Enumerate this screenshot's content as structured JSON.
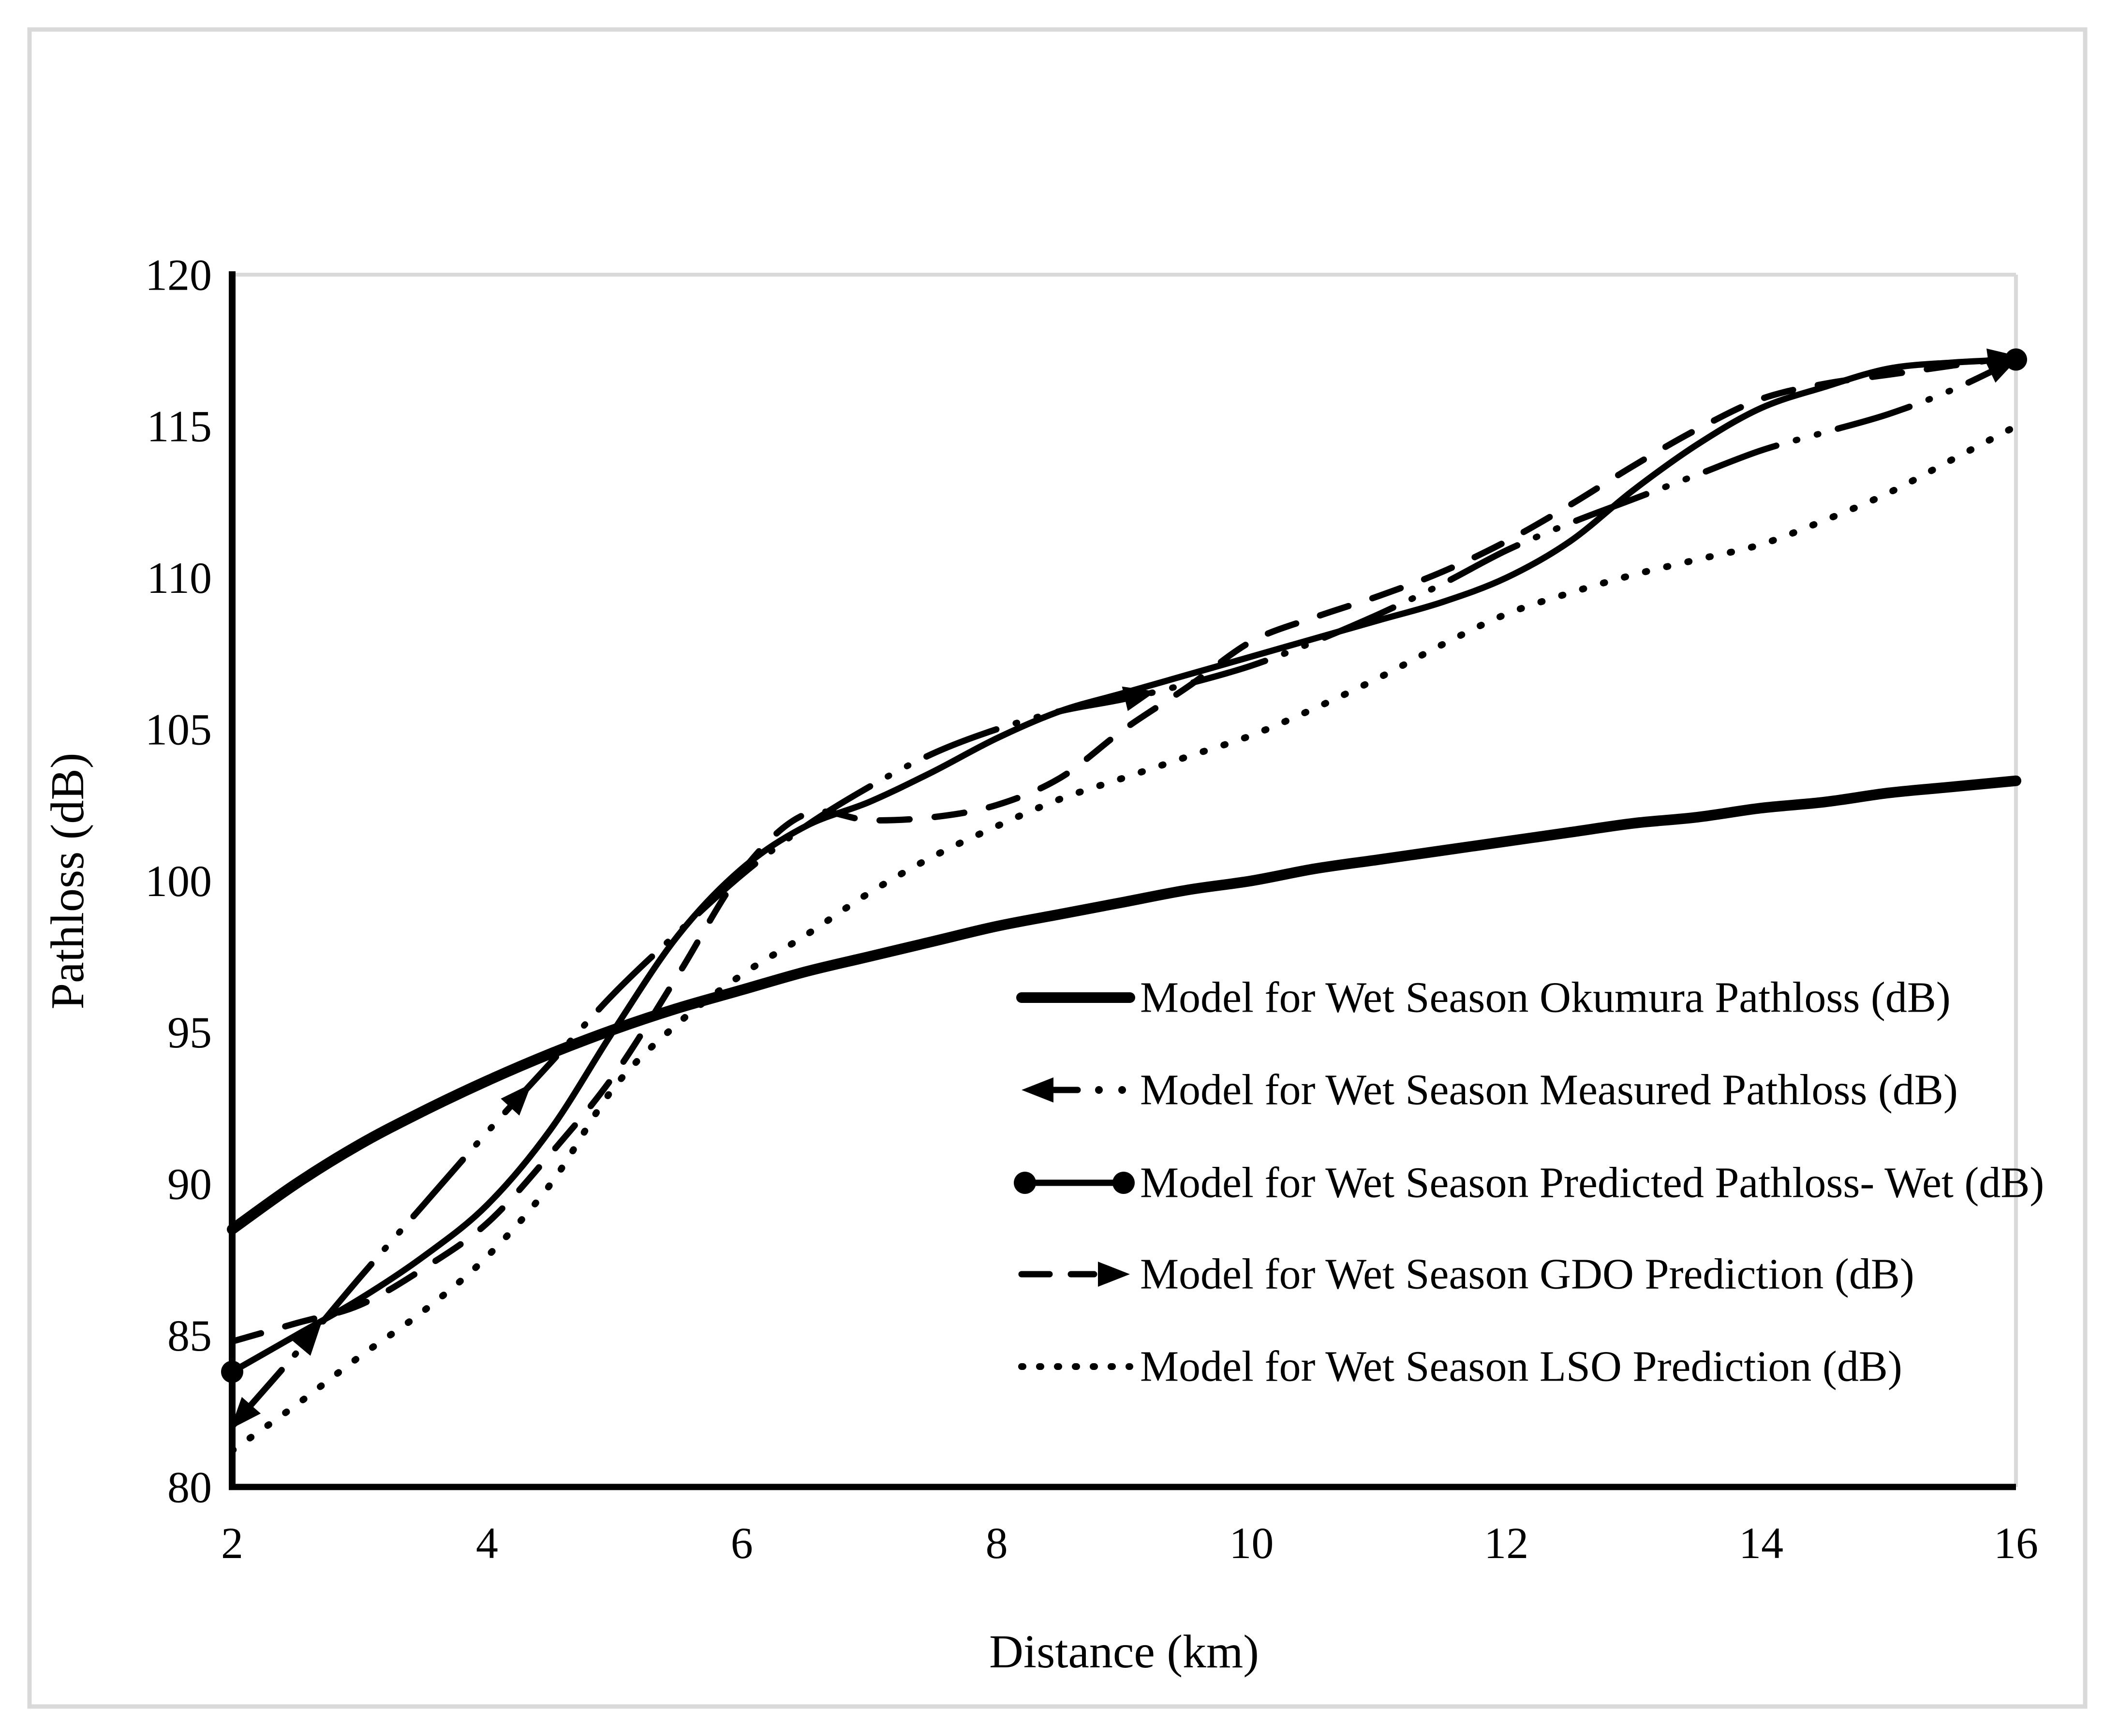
{
  "figure": {
    "background_color": "#ffffff",
    "frame_color": "#d9d9d9",
    "plot_border_color": "#d9d9d9",
    "axis_color": "#000000",
    "series_color": "#000000"
  },
  "chart_data": {
    "type": "line",
    "title": "",
    "xlabel": "Distance (km)",
    "ylabel": "Pathloss (dB)",
    "xlim": [
      2,
      16
    ],
    "ylim": [
      80,
      120
    ],
    "x_ticks": [
      2,
      4,
      6,
      8,
      10,
      12,
      14,
      16
    ],
    "y_ticks": [
      80,
      85,
      90,
      95,
      100,
      105,
      110,
      115,
      120
    ],
    "grid": false,
    "legend_position": "inside-right-middle",
    "x": [
      2,
      2.5,
      3,
      3.5,
      4,
      4.5,
      5,
      5.5,
      6,
      6.5,
      7,
      7.5,
      8,
      8.5,
      9,
      9.5,
      10,
      10.5,
      11,
      11.5,
      12,
      12.5,
      13,
      13.5,
      14,
      14.5,
      15,
      15.5,
      16
    ],
    "series": [
      {
        "name": "Model for Wet Season Okumura Pathloss (dB)",
        "style": "thick-solid",
        "values": [
          88.5,
          90.0,
          91.3,
          92.4,
          93.4,
          94.3,
          95.1,
          95.8,
          96.4,
          97.0,
          97.5,
          98.0,
          98.5,
          98.9,
          99.3,
          99.7,
          100.0,
          100.4,
          100.7,
          101.0,
          101.3,
          101.6,
          101.9,
          102.1,
          102.4,
          102.6,
          102.9,
          103.1,
          103.3
        ]
      },
      {
        "name": "Model for Wet Season Measured Pathloss (dB)",
        "style": "dash-dot-dot-arrows",
        "arrow_km": [
          2.7,
          4.35,
          9.25
        ],
        "values": [
          82.0,
          84.4,
          86.9,
          89.3,
          91.7,
          94.0,
          96.3,
          98.3,
          100.2,
          101.8,
          103.1,
          104.2,
          105.0,
          105.6,
          106.0,
          106.5,
          107.1,
          107.9,
          108.8,
          109.8,
          110.9,
          111.8,
          112.6,
          113.4,
          114.2,
          114.8,
          115.4,
          116.2,
          117.2
        ]
      },
      {
        "name": "Model for Wet Season Predicted Pathloss- Wet (dB)",
        "style": "solid-circle-markers",
        "values": [
          83.8,
          85.0,
          86.2,
          87.6,
          89.3,
          91.8,
          95.1,
          98.2,
          100.4,
          101.8,
          102.6,
          103.6,
          104.7,
          105.6,
          106.2,
          106.8,
          107.4,
          108.0,
          108.6,
          109.2,
          110.0,
          111.2,
          112.9,
          114.4,
          115.6,
          116.3,
          116.9,
          117.1,
          117.2
        ]
      },
      {
        "name": "Model for Wet Season GDO Prediction (dB)",
        "style": "dashed-arrow",
        "values": [
          84.8,
          85.4,
          86.0,
          87.2,
          88.7,
          91.0,
          93.6,
          96.9,
          100.3,
          102.2,
          102.0,
          102.1,
          102.5,
          103.4,
          105.0,
          106.4,
          107.9,
          108.7,
          109.4,
          110.2,
          111.2,
          112.4,
          113.7,
          114.9,
          115.9,
          116.4,
          116.7,
          117.0,
          117.3
        ]
      },
      {
        "name": "Model for Wet Season LSO Prediction (dB)",
        "style": "dotted",
        "values": [
          81.2,
          82.7,
          84.3,
          85.8,
          87.6,
          90.0,
          93.2,
          95.3,
          96.9,
          98.2,
          99.6,
          100.8,
          101.8,
          102.7,
          103.4,
          104.1,
          104.8,
          105.7,
          106.7,
          107.8,
          108.8,
          109.5,
          110.1,
          110.6,
          111.1,
          111.9,
          112.8,
          113.9,
          115.0
        ]
      }
    ]
  }
}
